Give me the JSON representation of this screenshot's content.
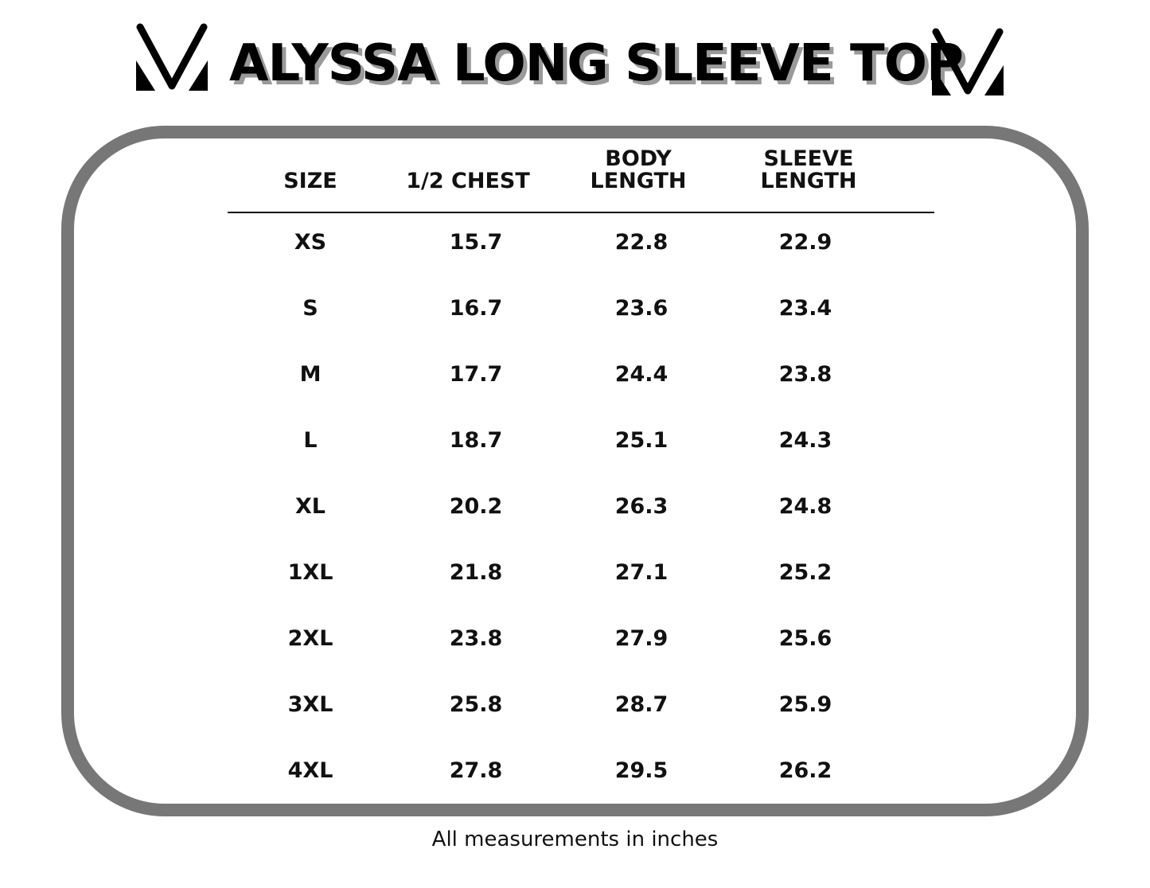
{
  "title": "ALYSSA LONG SLEEVE TOP",
  "logo_icon": "v-monogram-logo",
  "headers": [
    {
      "line1": "",
      "line2": "SIZE"
    },
    {
      "line1": "",
      "line2": "1/2 CHEST"
    },
    {
      "line1": "BODY",
      "line2": "LENGTH"
    },
    {
      "line1": "SLEEVE",
      "line2": "LENGTH"
    }
  ],
  "rows": [
    [
      "XS",
      "15.7",
      "22.8",
      "22.9"
    ],
    [
      "S",
      "16.7",
      "23.6",
      "23.4"
    ],
    [
      "M",
      "17.7",
      "24.4",
      "23.8"
    ],
    [
      "L",
      "18.7",
      "25.1",
      "24.3"
    ],
    [
      "XL",
      "20.2",
      "26.3",
      "24.8"
    ],
    [
      "1XL",
      "21.8",
      "27.1",
      "25.2"
    ],
    [
      "2XL",
      "23.8",
      "27.9",
      "25.6"
    ],
    [
      "3XL",
      "25.8",
      "28.7",
      "25.9"
    ],
    [
      "4XL",
      "27.8",
      "29.5",
      "26.2"
    ]
  ],
  "footnote": "All measurements in inches",
  "colors": {
    "frame": "#777777",
    "text": "#111111",
    "title_shadow": "#9a9a9a"
  }
}
